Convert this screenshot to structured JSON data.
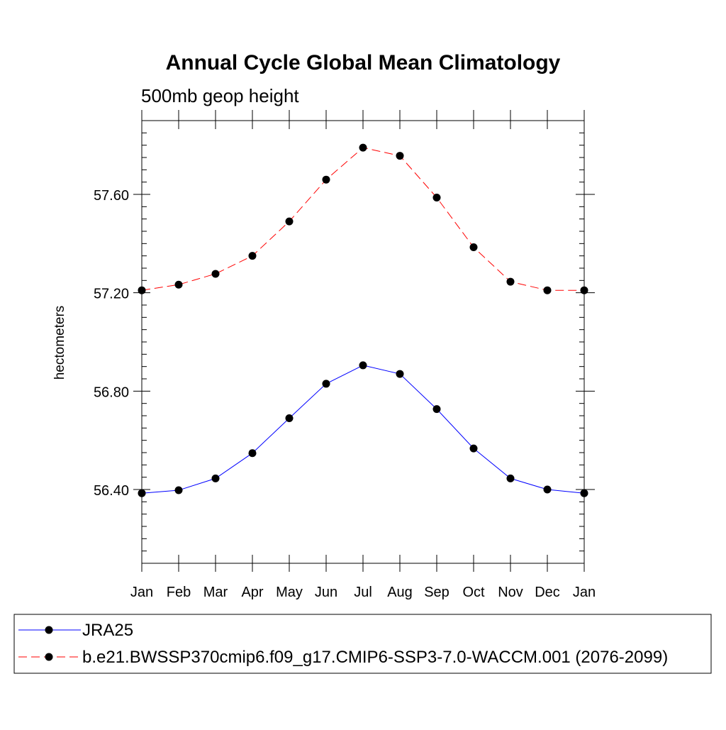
{
  "chart_data": {
    "type": "line",
    "title": "Annual Cycle Global Mean Climatology",
    "subtitle": "500mb geop height",
    "xlabel": "",
    "ylabel": "hectometers",
    "categories": [
      "Jan",
      "Feb",
      "Mar",
      "Apr",
      "May",
      "Jun",
      "Jul",
      "Aug",
      "Sep",
      "Oct",
      "Nov",
      "Dec",
      "Jan"
    ],
    "ylim": [
      56.1,
      57.9
    ],
    "yticks": [
      56.4,
      56.8,
      57.2,
      57.6
    ],
    "ytick_labels": [
      "56.40",
      "56.80",
      "57.20",
      "57.60"
    ],
    "grid": false,
    "legend_position": "bottom",
    "series": [
      {
        "name": "JRA25",
        "color": "#0000ff",
        "line_style": "solid",
        "marker": "filled-circle",
        "values": [
          56.385,
          56.397,
          56.445,
          56.548,
          56.69,
          56.83,
          56.905,
          56.87,
          56.727,
          56.567,
          56.445,
          56.4,
          56.385
        ]
      },
      {
        "name": "b.e21.BWSSP370cmip6.f09_g17.CMIP6-SSP3-7.0-WACCM.001 (2076-2099)",
        "color": "#ff0000",
        "line_style": "dashed",
        "marker": "filled-circle",
        "values": [
          57.21,
          57.233,
          57.277,
          57.35,
          57.49,
          57.66,
          57.79,
          57.757,
          57.587,
          57.385,
          57.245,
          57.21,
          57.21
        ]
      }
    ]
  }
}
